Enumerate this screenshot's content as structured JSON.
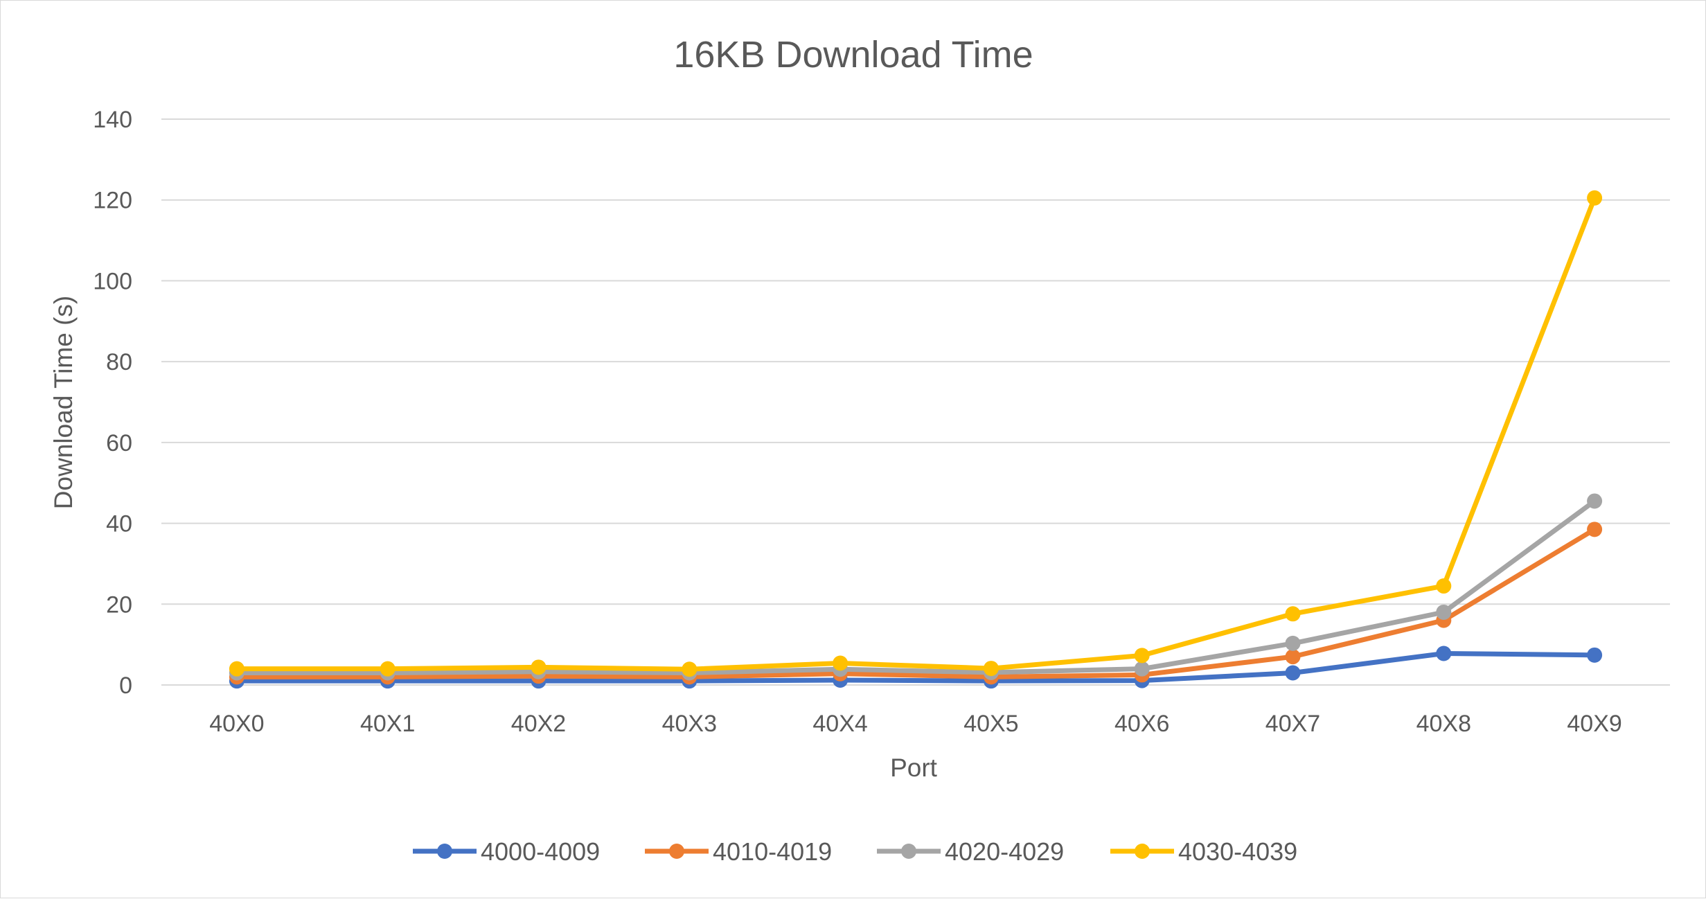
{
  "chart_data": {
    "type": "line",
    "title": "16KB Download Time",
    "xlabel": "Port",
    "ylabel": "Download Time (s)",
    "categories": [
      "40X0",
      "40X1",
      "40X2",
      "40X3",
      "40X4",
      "40X5",
      "40X6",
      "40X7",
      "40X8",
      "40X9"
    ],
    "ylim": [
      0,
      140
    ],
    "yticks": [
      0,
      20,
      40,
      60,
      80,
      100,
      120,
      140
    ],
    "grid": "horizontal",
    "legend_position": "bottom",
    "series": [
      {
        "name": "4000-4009",
        "color": "#4472C4",
        "values": [
          1.0,
          1.0,
          1.0,
          1.0,
          1.2,
          1.0,
          1.1,
          3.0,
          7.8,
          7.4
        ]
      },
      {
        "name": "4010-4019",
        "color": "#ED7D31",
        "values": [
          2.0,
          2.0,
          2.2,
          2.0,
          2.8,
          2.0,
          2.5,
          7.0,
          16.0,
          38.5
        ]
      },
      {
        "name": "4020-4029",
        "color": "#A5A5A5",
        "values": [
          3.0,
          3.0,
          3.3,
          3.0,
          3.9,
          3.1,
          4.0,
          10.3,
          18.0,
          45.5
        ]
      },
      {
        "name": "4030-4039",
        "color": "#FFC000",
        "values": [
          4.0,
          4.0,
          4.4,
          3.9,
          5.4,
          4.1,
          7.3,
          17.6,
          24.5,
          120.5
        ]
      }
    ]
  }
}
